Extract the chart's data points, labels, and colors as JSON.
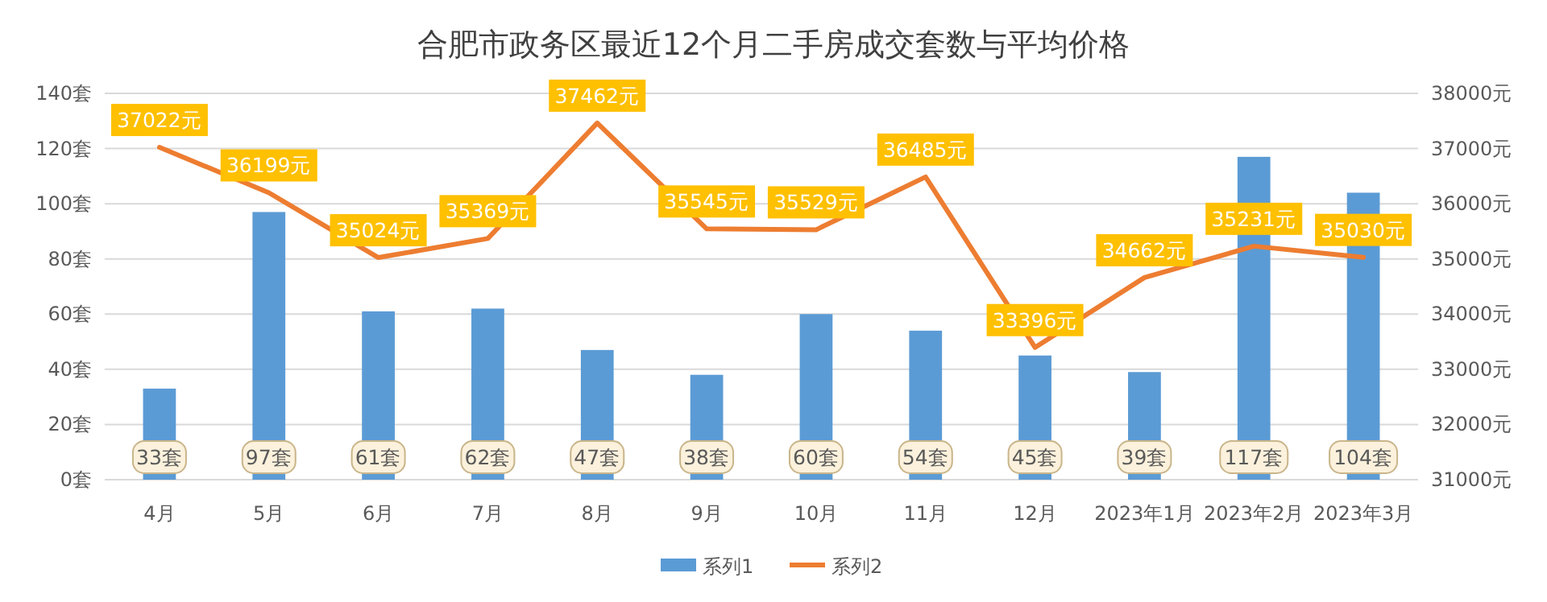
{
  "chart_data": {
    "type": "bar",
    "title": "合肥市政务区最近12个月二手房成交套数与平均价格",
    "categories": [
      "4月",
      "5月",
      "6月",
      "7月",
      "8月",
      "9月",
      "10月",
      "11月",
      "12月",
      "2023年1月",
      "2023年2月",
      "2023年3月"
    ],
    "series": [
      {
        "name": "系列1",
        "color": "#5b9bd5",
        "values": [
          33,
          97,
          61,
          62,
          47,
          38,
          60,
          54,
          45,
          39,
          117,
          104
        ],
        "value_labels": [
          "33套",
          "97套",
          "61套",
          "62套",
          "47套",
          "38套",
          "60套",
          "54套",
          "45套",
          "39套",
          "117套",
          "104套"
        ]
      },
      {
        "name": "系列2",
        "type": "line",
        "axis": "y2",
        "color": "#ed7d31",
        "values": [
          37022,
          36199,
          35024,
          35369,
          37462,
          35545,
          35529,
          36485,
          33396,
          34662,
          35231,
          35030
        ],
        "value_labels": [
          "37022元",
          "36199元",
          "35024元",
          "35369元",
          "37462元",
          "35545元",
          "35529元",
          "36485元",
          "33396元",
          "34662元",
          "35231元",
          "35030元"
        ]
      }
    ],
    "ylim": [
      0,
      140
    ],
    "yticks": [
      {
        "value": 0,
        "label": "0套"
      },
      {
        "value": 20,
        "label": "20套"
      },
      {
        "value": 40,
        "label": "40套"
      },
      {
        "value": 60,
        "label": "60套"
      },
      {
        "value": 80,
        "label": "80套"
      },
      {
        "value": 100,
        "label": "100套"
      },
      {
        "value": 120,
        "label": "120套"
      },
      {
        "value": 140,
        "label": "140套"
      }
    ],
    "y2lim": [
      31000,
      38000
    ],
    "y2ticks": [
      {
        "value": 31000,
        "label": "31000元"
      },
      {
        "value": 32000,
        "label": "32000元"
      },
      {
        "value": 33000,
        "label": "33000元"
      },
      {
        "value": 34000,
        "label": "34000元"
      },
      {
        "value": 35000,
        "label": "35000元"
      },
      {
        "value": 36000,
        "label": "36000元"
      },
      {
        "value": 37000,
        "label": "37000元"
      },
      {
        "value": 38000,
        "label": "38000元"
      }
    ],
    "grid": "y",
    "legend": "bottom",
    "line_style": "solid"
  }
}
